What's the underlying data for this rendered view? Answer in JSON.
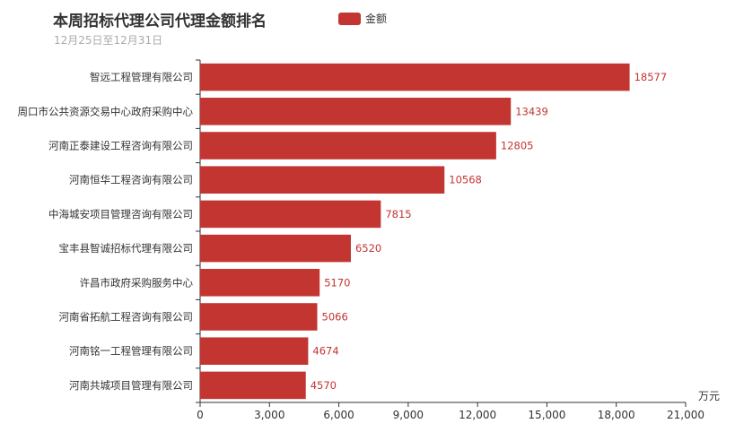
{
  "chart_data": {
    "type": "bar",
    "orientation": "horizontal",
    "title": "本周招标代理公司代理金额排名",
    "subtitle": "12月25日至12月31日",
    "xlabel": "万元",
    "ylabel": "",
    "legend": {
      "entries": [
        "金额"
      ],
      "placement": "top"
    },
    "xlim": [
      0,
      21000
    ],
    "x_ticks": [
      "0",
      "3,000",
      "6,000",
      "9,000",
      "12,000",
      "15,000",
      "18,000",
      "21,000"
    ],
    "categories": [
      "智远工程管理有限公司",
      "周口市公共资源交易中心政府采购中心",
      "河南正泰建设工程咨询有限公司",
      "河南恒华工程咨询有限公司",
      "中海城安项目管理咨询有限公司",
      "宝丰县智诚招标代理有限公司",
      "许昌市政府采购服务中心",
      "河南省拓航工程咨询有限公司",
      "河南铭一工程管理有限公司",
      "河南共城项目管理有限公司"
    ],
    "series": [
      {
        "name": "金额",
        "values": [
          18577,
          13439,
          12805,
          10568,
          7815,
          6520,
          5170,
          5066,
          4674,
          4570
        ]
      }
    ],
    "colors": {
      "bar": "#c23531",
      "axis": "#333333",
      "text": "#333333"
    }
  }
}
